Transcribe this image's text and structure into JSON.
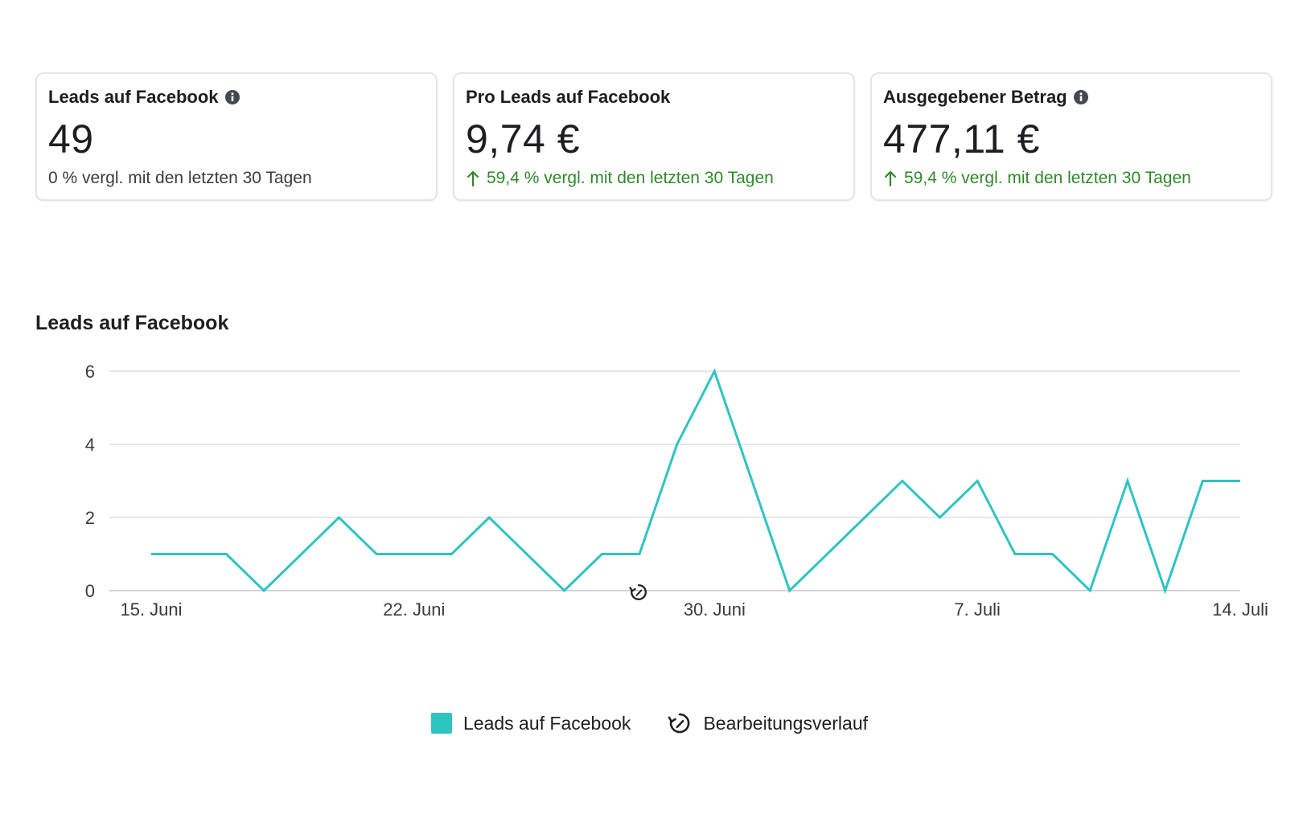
{
  "cards": [
    {
      "title": "Leads auf Facebook",
      "has_info": true,
      "value": "49",
      "comparison": "0 % vergl. mit den letzten 30 Tagen",
      "trend": "neutral"
    },
    {
      "title": "Pro Leads auf Facebook",
      "has_info": false,
      "value": "9,74 €",
      "comparison": "59,4 % vergl. mit den letzten 30 Tagen",
      "trend": "up"
    },
    {
      "title": "Ausgegebener Betrag",
      "has_info": true,
      "value": "477,11 €",
      "comparison": "59,4 % vergl. mit den letzten 30 Tagen",
      "trend": "up"
    }
  ],
  "icons": {
    "info": "info-icon",
    "trend_up": "arrow-up-icon",
    "history": "edit-history-icon"
  },
  "colors": {
    "series": "#2ec4c2",
    "positive": "#2e8a28",
    "grid": "#e4e6eb"
  },
  "chart_data": {
    "type": "line",
    "title": "Leads auf Facebook",
    "x": [
      "2023-06-15",
      "2023-06-16",
      "2023-06-17",
      "2023-06-18",
      "2023-06-19",
      "2023-06-20",
      "2023-06-21",
      "2023-06-22",
      "2023-06-23",
      "2023-06-24",
      "2023-06-25",
      "2023-06-26",
      "2023-06-27",
      "2023-06-28",
      "2023-06-29",
      "2023-06-30",
      "2023-07-01",
      "2023-07-02",
      "2023-07-03",
      "2023-07-04",
      "2023-07-05",
      "2023-07-06",
      "2023-07-07",
      "2023-07-08",
      "2023-07-09",
      "2023-07-10",
      "2023-07-11",
      "2023-07-12",
      "2023-07-13",
      "2023-07-14"
    ],
    "series": [
      {
        "name": "Leads auf Facebook",
        "values": [
          1,
          1,
          1,
          0,
          1,
          2,
          1,
          1,
          1,
          2,
          1,
          0,
          1,
          1,
          4,
          6,
          3,
          0,
          1,
          2,
          3,
          2,
          3,
          1,
          1,
          0,
          3,
          0,
          3,
          3
        ]
      }
    ],
    "x_tick_labels": [
      "15. Juni",
      "22. Juni",
      "30. Juni",
      "7. Juli",
      "14. Juli"
    ],
    "x_tick_dates": [
      "2023-06-15",
      "2023-06-22",
      "2023-06-30",
      "2023-07-07",
      "2023-07-14"
    ],
    "y_ticks": [
      0,
      2,
      4,
      6
    ],
    "ylim": [
      0,
      6
    ],
    "grid": true,
    "legend": [
      "Leads auf Facebook",
      "Bearbeitungsverlauf"
    ],
    "legend_position": "bottom-center",
    "annotations": [
      {
        "label": "Bearbeitungsverlauf",
        "date": "2023-06-28",
        "icon": "edit-history-icon"
      }
    ]
  }
}
